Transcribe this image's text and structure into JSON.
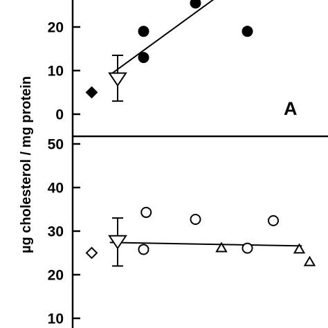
{
  "chart_data": {
    "type": "scatter",
    "ylabel": "µg cholesterol / mg protein",
    "panels": [
      {
        "id": "top",
        "label": "A",
        "ylim": [
          -3,
          30
        ],
        "yticks": [
          0,
          10,
          20
        ],
        "points": [
          {
            "x": 1,
            "y": 5,
            "marker": "diamond",
            "filled": true
          },
          {
            "x": 2,
            "y": 8,
            "marker": "triangle-down",
            "filled": false,
            "err_low": 3,
            "err_high": 13.5
          },
          {
            "x": 3,
            "y": 19,
            "marker": "circle",
            "filled": true
          },
          {
            "x": 3,
            "y": 13,
            "marker": "circle",
            "filled": true
          },
          {
            "x": 5,
            "y": 25.5,
            "marker": "circle",
            "filled": true
          },
          {
            "x": 7,
            "y": 19,
            "marker": "circle",
            "filled": true
          }
        ],
        "fit": {
          "x": [
            1.7,
            6.2
          ],
          "y": [
            9,
            28.5
          ]
        }
      },
      {
        "id": "bottom",
        "label": "",
        "ylim": [
          8,
          52
        ],
        "yticks": [
          10,
          20,
          30,
          40,
          50
        ],
        "points": [
          {
            "x": 1,
            "y": 25,
            "marker": "diamond",
            "filled": false
          },
          {
            "x": 2,
            "y": 27.5,
            "marker": "triangle-down",
            "filled": false,
            "err_low": 22,
            "err_high": 33
          },
          {
            "x": 3,
            "y": 25.8,
            "marker": "circle",
            "filled": false
          },
          {
            "x": 3.1,
            "y": 34.3,
            "marker": "circle",
            "filled": false
          },
          {
            "x": 5,
            "y": 32.7,
            "marker": "circle",
            "filled": false
          },
          {
            "x": 6,
            "y": 26.2,
            "marker": "triangle-up",
            "filled": false
          },
          {
            "x": 7,
            "y": 26.1,
            "marker": "circle",
            "filled": false
          },
          {
            "x": 8,
            "y": 32.4,
            "marker": "circle",
            "filled": false
          },
          {
            "x": 9,
            "y": 25.9,
            "marker": "triangle-up",
            "filled": false
          },
          {
            "x": 9.4,
            "y": 23,
            "marker": "triangle-up",
            "filled": false
          }
        ],
        "fit": {
          "x": [
            1.7,
            9.1
          ],
          "y": [
            27.4,
            26.6
          ]
        }
      }
    ]
  }
}
